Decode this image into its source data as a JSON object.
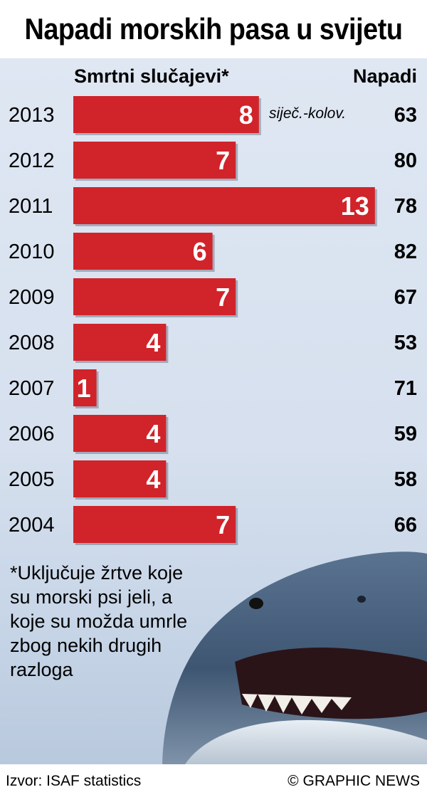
{
  "title": "Napadi morskih pasa u svijetu",
  "headers": {
    "deaths": "Smrtni slučajevi*",
    "attacks": "Napadi"
  },
  "note_2013": "siječ.-kolov.",
  "footnote": "*Uključuje žrtve koje su morski psi jeli, a koje su možda umrle zbog nekih drugih razloga",
  "source": "Izvor: ISAF statistics",
  "credit": "© GRAPHIC NEWS",
  "colors": {
    "bar": "#d1232a",
    "background": "#d9e3f0"
  },
  "illustration": "shark-icon",
  "chart_data": {
    "type": "bar",
    "orientation": "horizontal",
    "categories": [
      "2013",
      "2012",
      "2011",
      "2010",
      "2009",
      "2008",
      "2007",
      "2006",
      "2005",
      "2004"
    ],
    "series": [
      {
        "name": "Smrtni slučajevi*",
        "values": [
          8,
          7,
          13,
          6,
          7,
          4,
          1,
          4,
          4,
          7
        ]
      },
      {
        "name": "Napadi",
        "values": [
          63,
          80,
          78,
          82,
          67,
          53,
          71,
          59,
          58,
          66
        ]
      }
    ],
    "title": "Napadi morskih pasa u svijetu",
    "grid": false
  }
}
